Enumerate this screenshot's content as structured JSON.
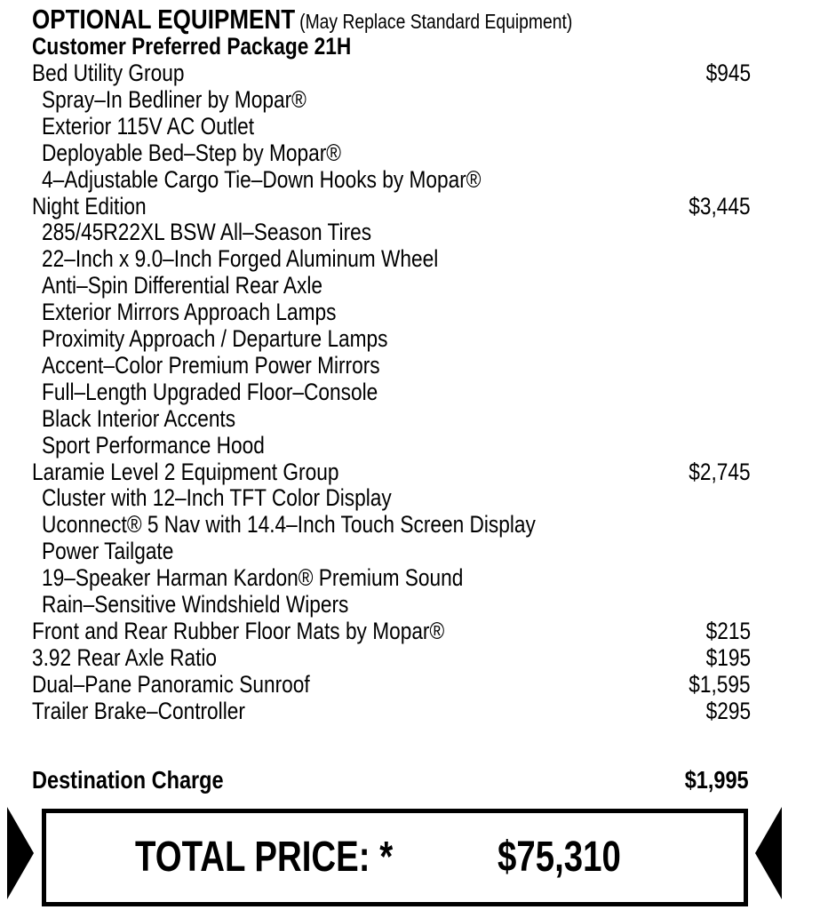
{
  "header": {
    "title": "OPTIONAL EQUIPMENT",
    "subtitle": "(May Replace Standard Equipment)",
    "package": "Customer Preferred Package 21H"
  },
  "items": [
    {
      "label": "Bed Utility Group",
      "price": "$945",
      "indent": 0
    },
    {
      "label": "Spray–In Bedliner by Mopar®",
      "indent": 1
    },
    {
      "label": "Exterior 115V AC Outlet",
      "indent": 1
    },
    {
      "label": "Deployable Bed–Step by Mopar®",
      "indent": 1
    },
    {
      "label": "4–Adjustable Cargo Tie–Down Hooks by Mopar®",
      "indent": 1
    },
    {
      "label": "Night Edition",
      "price": "$3,445",
      "indent": 0
    },
    {
      "label": "285/45R22XL BSW All–Season Tires",
      "indent": 1
    },
    {
      "label": "22–Inch x 9.0–Inch Forged Aluminum Wheel",
      "indent": 1
    },
    {
      "label": "Anti–Spin Differential Rear Axle",
      "indent": 1
    },
    {
      "label": "Exterior Mirrors Approach Lamps",
      "indent": 1
    },
    {
      "label": "Proximity Approach / Departure Lamps",
      "indent": 1
    },
    {
      "label": "Accent–Color Premium Power Mirrors",
      "indent": 1
    },
    {
      "label": "Full–Length Upgraded Floor–Console",
      "indent": 1
    },
    {
      "label": "Black Interior Accents",
      "indent": 1
    },
    {
      "label": "Sport Performance Hood",
      "indent": 1
    },
    {
      "label": "Laramie Level 2 Equipment Group",
      "price": "$2,745",
      "indent": 0
    },
    {
      "label": "Cluster with 12–Inch TFT Color Display",
      "indent": 1
    },
    {
      "label": "Uconnect® 5 Nav with 14.4–Inch Touch Screen Display",
      "indent": 1
    },
    {
      "label": "Power Tailgate",
      "indent": 1
    },
    {
      "label": "19–Speaker Harman Kardon® Premium Sound",
      "indent": 1
    },
    {
      "label": "Rain–Sensitive Windshield Wipers",
      "indent": 1
    },
    {
      "label": "Front and Rear Rubber Floor Mats by Mopar®",
      "price": "$215",
      "indent": 0
    },
    {
      "label": "3.92 Rear Axle Ratio",
      "price": "$195",
      "indent": 0
    },
    {
      "label": "Dual–Pane Panoramic Sunroof",
      "price": "$1,595",
      "indent": 0
    },
    {
      "label": "Trailer Brake–Controller",
      "price": "$295",
      "indent": 0
    }
  ],
  "destination": {
    "label": "Destination Charge",
    "price": "$1,995"
  },
  "total": {
    "label": "TOTAL PRICE: *",
    "price": "$75,310"
  }
}
